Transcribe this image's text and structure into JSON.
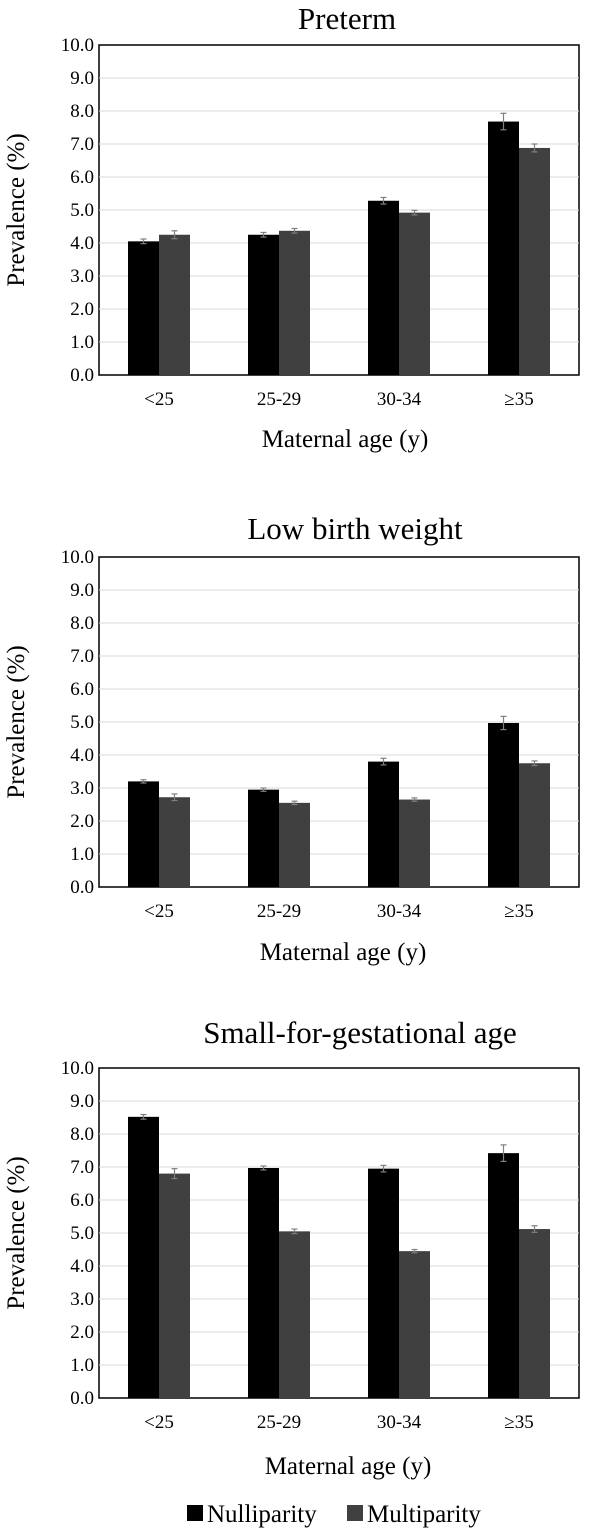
{
  "legend": {
    "nulliparity_label": "Nulliparity",
    "multiparity_label": "Multiparity",
    "nulliparity_color": "#000000",
    "multiparity_color": "#404040"
  },
  "chart_data": [
    {
      "type": "bar",
      "title": "Preterm",
      "xlabel": "Maternal age (y)",
      "ylabel": "Prevalence (%)",
      "ylim": [
        0,
        10
      ],
      "yticks": [
        "0.0",
        "1.0",
        "2.0",
        "3.0",
        "4.0",
        "5.0",
        "6.0",
        "7.0",
        "8.0",
        "9.0",
        "10.0"
      ],
      "grid": true,
      "categories": [
        "<25",
        "25-29",
        "30-34",
        "≥35"
      ],
      "series": [
        {
          "name": "Nulliparity",
          "color": "#000000",
          "values": [
            4.05,
            4.25,
            5.28,
            7.68
          ],
          "errors": [
            0.07,
            0.07,
            0.1,
            0.25
          ]
        },
        {
          "name": "Multiparity",
          "color": "#404040",
          "values": [
            4.25,
            4.37,
            4.92,
            6.88
          ],
          "errors": [
            0.12,
            0.07,
            0.07,
            0.12
          ]
        }
      ]
    },
    {
      "type": "bar",
      "title": "Low birth weight",
      "xlabel": "Maternal age (y)",
      "ylabel": "Prevalence (%)",
      "ylim": [
        0,
        10
      ],
      "yticks": [
        "0.0",
        "1.0",
        "2.0",
        "3.0",
        "4.0",
        "5.0",
        "6.0",
        "7.0",
        "8.0",
        "9.0",
        "10.0"
      ],
      "grid": true,
      "categories": [
        "<25",
        "25-29",
        "30-34",
        "≥35"
      ],
      "series": [
        {
          "name": "Nulliparity",
          "color": "#000000",
          "values": [
            3.2,
            2.95,
            3.8,
            4.97
          ],
          "errors": [
            0.05,
            0.05,
            0.1,
            0.2
          ]
        },
        {
          "name": "Multiparity",
          "color": "#404040",
          "values": [
            2.72,
            2.55,
            2.65,
            3.75
          ],
          "errors": [
            0.1,
            0.05,
            0.05,
            0.07
          ]
        }
      ]
    },
    {
      "type": "bar",
      "title": "Small-for-gestational age",
      "xlabel": "Maternal age (y)",
      "ylabel": "Prevalence (%)",
      "ylim": [
        0,
        10
      ],
      "yticks": [
        "0.0",
        "1.0",
        "2.0",
        "3.0",
        "4.0",
        "5.0",
        "6.0",
        "7.0",
        "8.0",
        "9.0",
        "10.0"
      ],
      "grid": true,
      "categories": [
        "<25",
        "25-29",
        "30-34",
        "≥35"
      ],
      "series": [
        {
          "name": "Nulliparity",
          "color": "#000000",
          "values": [
            8.52,
            6.97,
            6.95,
            7.42
          ],
          "errors": [
            0.07,
            0.06,
            0.1,
            0.25
          ]
        },
        {
          "name": "Multiparity",
          "color": "#404040",
          "values": [
            6.8,
            5.05,
            4.45,
            5.12
          ],
          "errors": [
            0.15,
            0.07,
            0.05,
            0.1
          ]
        }
      ]
    }
  ]
}
